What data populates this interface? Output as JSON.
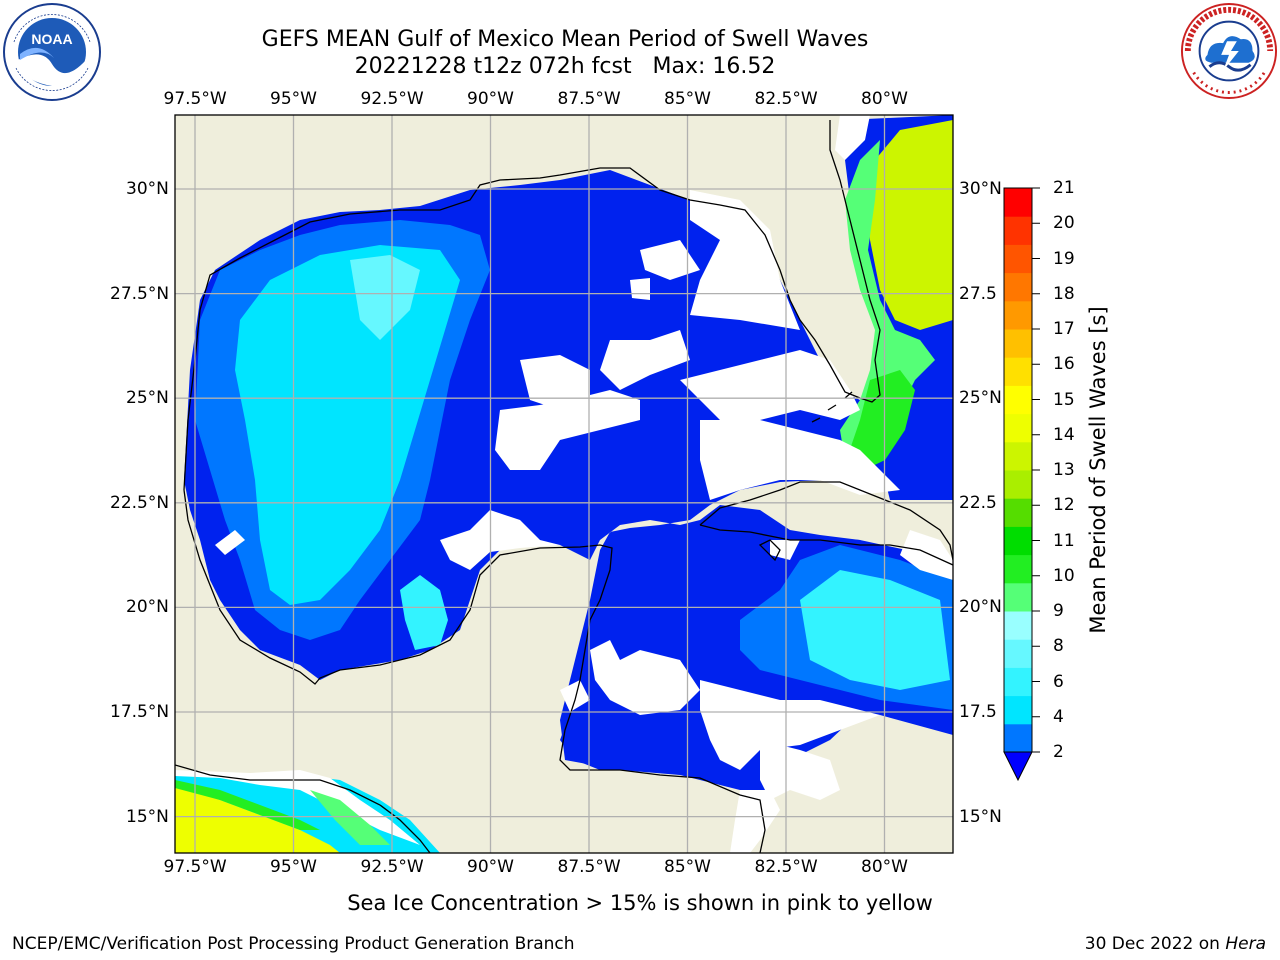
{
  "title": {
    "line1": "GEFS MEAN Gulf of Mexico Mean Period of Swell Waves",
    "line2": "20221228 t12z 072h fcst   Max: 16.52"
  },
  "map": {
    "lon_ticks": [
      "97.5°W",
      "95°W",
      "92.5°W",
      "90°W",
      "87.5°W",
      "85°W",
      "82.5°W",
      "80°W"
    ],
    "lon_values": [
      -97.5,
      -95,
      -92.5,
      -90,
      -87.5,
      -85,
      -82.5,
      -80
    ],
    "lat_ticks_left": [
      "30°N",
      "27.5°N",
      "25°N",
      "22.5°N",
      "20°N",
      "17.5°N",
      "15°N"
    ],
    "lat_ticks_right": [
      "30°N",
      "27.5",
      "25°N",
      "22.5",
      "20°N",
      "17.5",
      "15°N"
    ],
    "lat_values": [
      30,
      27.5,
      25,
      22.5,
      20,
      17.5,
      15
    ],
    "land_color": "#efeedc",
    "no_data_color": "#ffffff",
    "grid_color": "#b0b0b0"
  },
  "colorbar": {
    "label": "Mean Period of Swell Waves [s]",
    "ticks": [
      "21",
      "20",
      "19",
      "18",
      "17",
      "16",
      "15",
      "14",
      "13",
      "12",
      "11",
      "10",
      "9",
      "8",
      "6",
      "4",
      "2"
    ],
    "colors_bottom_to_top": [
      "#0077ff",
      "#00e5ff",
      "#33f3ff",
      "#66f8ff",
      "#99ffff",
      "#55ff77",
      "#22ee22",
      "#00dd00",
      "#55dd00",
      "#aaee00",
      "#ccf500",
      "#eeff00",
      "#ffff00",
      "#ffe000",
      "#ffc000",
      "#ff9900",
      "#ff7700",
      "#ff5500",
      "#ff3300",
      "#ff0000"
    ],
    "extend_color": "#0000ff"
  },
  "footer": {
    "note": "Sea Ice Concentration > 15% is shown in pink to yellow",
    "left": "NCEP/EMC/Verification Post Processing Product Generation Branch",
    "right_date": "30 Dec 2022 on ",
    "right_host": "Hera"
  },
  "icons": {
    "noaa": "noaa-logo-icon",
    "nws": "nws-logo-icon"
  }
}
